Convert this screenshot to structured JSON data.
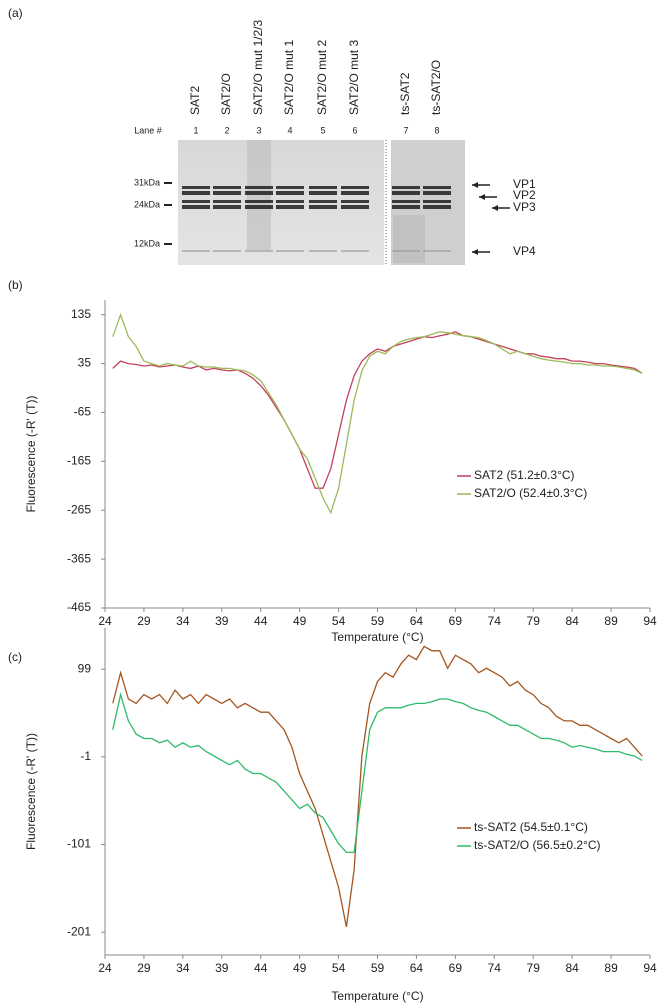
{
  "panels": [
    "(a)",
    "(b)",
    "(c)"
  ],
  "gel": {
    "lane_header": "Lane #",
    "lanes": [
      {
        "name": "SAT2",
        "number": "1"
      },
      {
        "name": "SAT2/O",
        "number": "2"
      },
      {
        "name": "SAT2/O mut 1/2/3",
        "number": "3"
      },
      {
        "name": "SAT2/O mut 1",
        "number": "4"
      },
      {
        "name": "SAT2/O mut 2",
        "number": "5"
      },
      {
        "name": "SAT2/O mut 3",
        "number": "6"
      },
      {
        "name": "ts-SAT2",
        "number": "7"
      },
      {
        "name": "ts-SAT2/O",
        "number": "8"
      }
    ],
    "markers": [
      "31kDa",
      "24kDa",
      "12kDa"
    ],
    "proteins": [
      "VP1",
      "VP2",
      "VP3",
      "VP4"
    ]
  },
  "chart_data": [
    {
      "type": "line",
      "y_label": "Fluorescence (-R' (T))",
      "x_label": "Temperature (°C)",
      "x": [
        25,
        26,
        27,
        28,
        29,
        30,
        31,
        32,
        33,
        34,
        35,
        36,
        37,
        38,
        39,
        40,
        41,
        42,
        43,
        44,
        45,
        46,
        47,
        48,
        49,
        50,
        51,
        52,
        53,
        54,
        55,
        56,
        57,
        58,
        59,
        60,
        61,
        62,
        63,
        64,
        65,
        66,
        67,
        68,
        69,
        70,
        71,
        72,
        73,
        74,
        75,
        76,
        77,
        78,
        79,
        80,
        81,
        82,
        83,
        84,
        85,
        86,
        87,
        88,
        89,
        90,
        91,
        92,
        93
      ],
      "xlim": [
        24,
        94
      ],
      "xticks": [
        24,
        29,
        34,
        39,
        44,
        49,
        54,
        59,
        64,
        69,
        74,
        79,
        84,
        89,
        94
      ],
      "ylim": [
        -465,
        165
      ],
      "yticks": [
        -465,
        -365,
        -265,
        -165,
        -65,
        35,
        135
      ],
      "series": [
        {
          "name": "SAT2 (51.2±0.3°C)",
          "color": "#c4415b",
          "values": [
            25,
            40,
            35,
            33,
            30,
            32,
            28,
            30,
            32,
            28,
            25,
            30,
            22,
            25,
            22,
            20,
            22,
            15,
            5,
            -10,
            -30,
            -55,
            -80,
            -110,
            -140,
            -180,
            -220,
            -220,
            -180,
            -110,
            -40,
            10,
            40,
            55,
            65,
            60,
            70,
            75,
            80,
            85,
            90,
            88,
            92,
            95,
            100,
            92,
            90,
            85,
            80,
            75,
            70,
            65,
            60,
            55,
            55,
            50,
            48,
            45,
            45,
            40,
            40,
            38,
            35,
            35,
            32,
            30,
            28,
            25,
            15
          ]
        },
        {
          "name": "SAT2/O (52.4±0.3°C)",
          "color": "#9bbb59",
          "values": [
            90,
            135,
            90,
            70,
            40,
            35,
            30,
            35,
            32,
            30,
            40,
            30,
            28,
            28,
            25,
            25,
            22,
            20,
            12,
            0,
            -25,
            -50,
            -80,
            -110,
            -140,
            -160,
            -200,
            -240,
            -270,
            -220,
            -130,
            -40,
            20,
            50,
            60,
            55,
            70,
            80,
            85,
            88,
            90,
            95,
            100,
            98,
            95,
            92,
            90,
            88,
            82,
            75,
            65,
            55,
            60,
            55,
            50,
            45,
            42,
            40,
            38,
            35,
            35,
            32,
            32,
            30,
            30,
            28,
            25,
            22,
            15
          ]
        }
      ]
    },
    {
      "type": "line",
      "y_label": "Fluorescence (-R' (T))",
      "x_label": "Temperature (°C)",
      "x": [
        25,
        26,
        27,
        28,
        29,
        30,
        31,
        32,
        33,
        34,
        35,
        36,
        37,
        38,
        39,
        40,
        41,
        42,
        43,
        44,
        45,
        46,
        47,
        48,
        49,
        50,
        51,
        52,
        53,
        54,
        55,
        56,
        57,
        58,
        59,
        60,
        61,
        62,
        63,
        64,
        65,
        66,
        67,
        68,
        69,
        70,
        71,
        72,
        73,
        74,
        75,
        76,
        77,
        78,
        79,
        80,
        81,
        82,
        83,
        84,
        85,
        86,
        87,
        88,
        89,
        90,
        91,
        92,
        93
      ],
      "xlim": [
        24,
        94
      ],
      "xticks": [
        24,
        29,
        34,
        39,
        44,
        49,
        54,
        59,
        64,
        69,
        74,
        79,
        84,
        89,
        94
      ],
      "ylim": [
        -227,
        146
      ],
      "yticks": [
        -201,
        -101,
        -1,
        99
      ],
      "series": [
        {
          "name": "ts-SAT2 (54.5±0.1°C)",
          "color": "#a5561f",
          "values": [
            60,
            95,
            65,
            60,
            70,
            65,
            70,
            60,
            75,
            65,
            70,
            60,
            70,
            65,
            60,
            65,
            55,
            60,
            55,
            50,
            50,
            40,
            30,
            10,
            -20,
            -40,
            -60,
            -90,
            -120,
            -150,
            -195,
            -130,
            0,
            60,
            85,
            95,
            90,
            105,
            115,
            110,
            125,
            120,
            120,
            100,
            115,
            110,
            105,
            95,
            100,
            95,
            90,
            80,
            85,
            75,
            70,
            60,
            55,
            45,
            40,
            40,
            35,
            35,
            30,
            25,
            20,
            15,
            20,
            10,
            0
          ]
        },
        {
          "name": "ts-SAT2/O (56.5±0.2°C)",
          "color": "#2dbb6a",
          "values": [
            30,
            70,
            40,
            25,
            20,
            20,
            15,
            18,
            10,
            15,
            10,
            12,
            5,
            0,
            -5,
            -10,
            -5,
            -15,
            -20,
            -20,
            -25,
            -30,
            -40,
            -50,
            -60,
            -55,
            -65,
            -70,
            -85,
            -100,
            -110,
            -110,
            -40,
            30,
            50,
            55,
            55,
            55,
            58,
            60,
            60,
            62,
            65,
            65,
            62,
            60,
            55,
            52,
            50,
            45,
            40,
            35,
            35,
            30,
            25,
            20,
            20,
            18,
            15,
            10,
            12,
            10,
            8,
            5,
            5,
            5,
            2,
            0,
            -5
          ]
        }
      ]
    }
  ]
}
